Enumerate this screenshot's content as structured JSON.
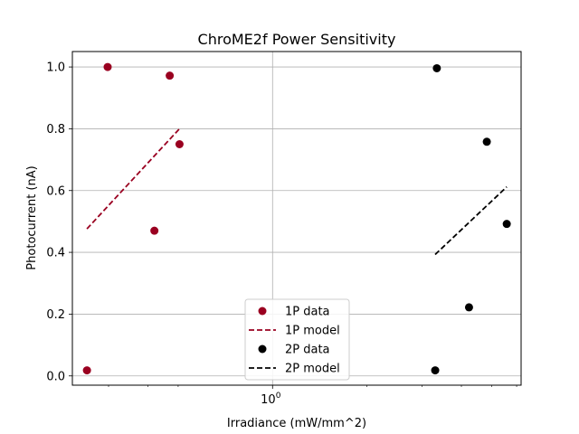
{
  "chart_data": {
    "type": "scatter",
    "title": "ChroME2f Power Sensitivity",
    "xlabel": "Irradiance (mW/mm^2)",
    "ylabel": "Photocurrent (nA)",
    "xscale": "log",
    "xlim": [
      0.23,
      6.2
    ],
    "ylim": [
      -0.03,
      1.05
    ],
    "grid": true,
    "legend_position": "bottom-center",
    "x_major_ticks": [
      {
        "value": 1,
        "label": "10^0"
      }
    ],
    "x_minor_ticks": [
      0.3,
      0.4,
      0.5,
      2,
      3,
      4,
      5,
      6
    ],
    "y_ticks": [
      {
        "value": 0.0,
        "label": "0.0"
      },
      {
        "value": 0.2,
        "label": "0.2"
      },
      {
        "value": 0.4,
        "label": "0.4"
      },
      {
        "value": 0.6,
        "label": "0.6"
      },
      {
        "value": 0.8,
        "label": "0.8"
      },
      {
        "value": 1.0,
        "label": "1.0"
      }
    ],
    "colors": {
      "one_p": "#9a0020",
      "two_p": "#000000"
    },
    "series": [
      {
        "name": "1P data",
        "kind": "points",
        "color": "#9a0020",
        "points": [
          {
            "x": 0.256,
            "y": 0.018
          },
          {
            "x": 0.298,
            "y": 1.0
          },
          {
            "x": 0.42,
            "y": 0.47
          },
          {
            "x": 0.47,
            "y": 0.972
          },
          {
            "x": 0.505,
            "y": 0.75
          }
        ]
      },
      {
        "name": "1P model",
        "kind": "dashed-line",
        "color": "#9a0020",
        "points": [
          {
            "x": 0.256,
            "y": 0.476
          },
          {
            "x": 0.505,
            "y": 0.8
          }
        ]
      },
      {
        "name": "2P data",
        "kind": "points",
        "color": "#000000",
        "points": [
          {
            "x": 3.3,
            "y": 0.018
          },
          {
            "x": 3.34,
            "y": 0.996
          },
          {
            "x": 4.23,
            "y": 0.222
          },
          {
            "x": 4.82,
            "y": 0.758
          },
          {
            "x": 5.58,
            "y": 0.492
          }
        ]
      },
      {
        "name": "2P model",
        "kind": "dashed-line",
        "color": "#000000",
        "points": [
          {
            "x": 3.3,
            "y": 0.393
          },
          {
            "x": 5.58,
            "y": 0.612
          }
        ]
      }
    ]
  }
}
